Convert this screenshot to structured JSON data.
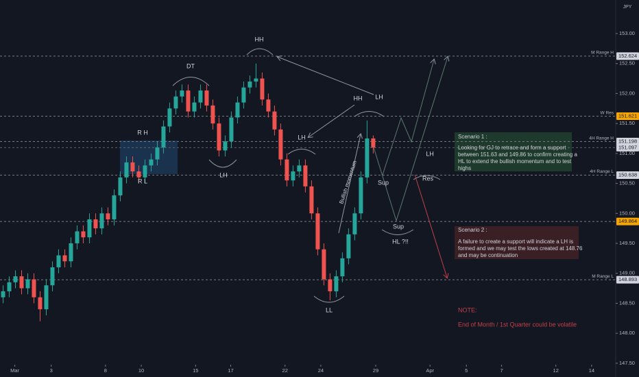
{
  "chart_data": {
    "type": "candlestick",
    "currency": "JPY",
    "open": [
      148.6,
      148.7,
      148.85,
      148.95,
      148.75,
      148.9,
      148.6,
      148.4,
      148.8,
      149.1,
      149.3,
      149.2,
      149.5,
      149.7,
      149.6,
      149.9,
      149.75,
      150.0,
      149.9,
      150.3,
      150.6,
      150.85,
      150.7,
      150.6,
      150.8,
      150.9,
      151.1,
      151.45,
      151.75,
      151.95,
      152.05,
      151.7,
      151.85,
      152.05,
      151.8,
      151.5,
      151.05,
      151.2,
      151.6,
      151.85,
      152.1,
      152.2,
      152.25,
      151.9,
      151.7,
      151.4,
      150.9,
      150.55,
      150.7,
      150.8,
      150.45,
      150.0,
      149.4,
      148.9,
      148.7,
      148.95,
      149.25,
      149.65,
      150.0,
      150.6,
      151.25
    ],
    "high": [
      148.8,
      148.95,
      149.05,
      149.05,
      149.0,
      149.0,
      148.7,
      148.9,
      149.2,
      149.4,
      149.4,
      149.6,
      149.8,
      149.8,
      150.0,
      150.0,
      150.1,
      150.1,
      150.4,
      150.7,
      150.95,
      150.95,
      150.8,
      150.9,
      151.0,
      151.2,
      151.55,
      151.85,
      152.05,
      152.15,
      152.15,
      151.95,
      152.15,
      152.15,
      151.9,
      151.6,
      151.3,
      151.7,
      151.95,
      152.2,
      152.3,
      152.5,
      152.35,
      152.0,
      151.8,
      151.5,
      151.0,
      150.8,
      150.9,
      150.9,
      150.55,
      150.1,
      149.5,
      149.0,
      149.05,
      149.35,
      149.75,
      150.1,
      150.7,
      151.55,
      151.3
    ],
    "low": [
      148.5,
      148.6,
      148.75,
      148.65,
      148.65,
      148.5,
      148.2,
      148.3,
      148.7,
      149.0,
      149.1,
      149.1,
      149.4,
      149.5,
      149.5,
      149.65,
      149.65,
      149.8,
      149.8,
      150.2,
      150.5,
      150.6,
      150.5,
      150.5,
      150.7,
      150.8,
      151.0,
      151.35,
      151.65,
      151.85,
      151.6,
      151.6,
      151.75,
      151.7,
      151.4,
      150.95,
      150.95,
      151.1,
      151.5,
      151.75,
      152.0,
      152.1,
      151.8,
      151.6,
      151.3,
      150.8,
      150.45,
      150.45,
      150.6,
      150.35,
      149.9,
      149.3,
      148.8,
      148.55,
      148.6,
      148.85,
      149.15,
      149.55,
      149.9,
      150.5,
      151.0
    ],
    "close": [
      148.7,
      148.85,
      148.95,
      148.75,
      148.9,
      148.6,
      148.4,
      148.8,
      149.1,
      149.3,
      149.2,
      149.5,
      149.7,
      149.6,
      149.9,
      149.75,
      150.0,
      149.9,
      150.3,
      150.6,
      150.85,
      150.7,
      150.6,
      150.8,
      150.9,
      151.1,
      151.45,
      151.75,
      151.95,
      152.05,
      151.7,
      151.85,
      152.05,
      151.8,
      151.5,
      151.05,
      151.2,
      151.6,
      151.85,
      152.1,
      152.2,
      152.25,
      151.9,
      151.7,
      151.4,
      150.9,
      150.55,
      150.7,
      150.8,
      150.45,
      150.0,
      149.4,
      148.9,
      148.7,
      148.95,
      149.25,
      149.65,
      150.0,
      150.6,
      151.25,
      151.1
    ],
    "up_color": "#26a69a",
    "down_color": "#ef5350",
    "xlim": [
      -0.5,
      99.3
    ],
    "xticks": [
      {
        "value": 1.9,
        "label": "Mar"
      },
      {
        "value": 7.8,
        "label": "3"
      },
      {
        "value": 16.6,
        "label": "8"
      },
      {
        "value": 22.4,
        "label": "10"
      },
      {
        "value": 31.2,
        "label": "15"
      },
      {
        "value": 36.9,
        "label": "17"
      },
      {
        "value": 45.7,
        "label": "22"
      },
      {
        "value": 51.5,
        "label": "24"
      },
      {
        "value": 60.4,
        "label": "29"
      },
      {
        "value": 69.2,
        "label": "Apr"
      },
      {
        "value": 75.1,
        "label": "5"
      },
      {
        "value": 80.8,
        "label": "7"
      },
      {
        "value": 89.6,
        "label": "12"
      },
      {
        "value": 95.4,
        "label": "14"
      }
    ],
    "ylim": [
      147.27,
      153.56
    ],
    "yticks": [
      {
        "value": 147.5,
        "label": "147.50"
      },
      {
        "value": 148,
        "label": "148.00"
      },
      {
        "value": 148.5,
        "label": "148.50"
      },
      {
        "value": 149,
        "label": "149.00"
      },
      {
        "value": 149.5,
        "label": "149.50"
      },
      {
        "value": 150,
        "label": "150.00"
      },
      {
        "value": 150.5,
        "label": "150.50"
      },
      {
        "value": 151,
        "label": "151.00"
      },
      {
        "value": 151.5,
        "label": "151.50"
      },
      {
        "value": 152,
        "label": "152.00"
      },
      {
        "value": 152.5,
        "label": "152.50"
      },
      {
        "value": 153,
        "label": "153.00"
      }
    ],
    "levels": [
      {
        "value": 152.624,
        "label": "152.624",
        "name": "M Range H",
        "color": "#d1d4dc"
      },
      {
        "value": 151.621,
        "label": "151.621",
        "name": "W Res",
        "color": "#f7a600"
      },
      {
        "value": 151.198,
        "label": "151.198",
        "name": "4H Range H",
        "color": "#d1d4dc"
      },
      {
        "value": 151.097,
        "label": "151.097",
        "color": "#d1d4dc"
      },
      {
        "value": 150.638,
        "label": "150.638",
        "name": "4H Range L",
        "color": "#d1d4dc"
      },
      {
        "value": 149.864,
        "label": "149.864",
        "color": "#f7a600"
      },
      {
        "value": 148.893,
        "label": "148.893",
        "name": "M Range L",
        "color": "#d1d4dc"
      }
    ],
    "annotations": [
      "HH",
      "DT",
      "R H",
      "R L",
      "LH",
      "HH",
      "LH",
      "LH",
      "Bullish momentum",
      "Sup",
      "Sup",
      "HL ?!!",
      "Res",
      "LH",
      "LL"
    ],
    "scenario_1": {
      "title": "Scenario 1 :",
      "lines": [
        "Looking for GJ to retrace and form a support",
        "between 151.63 and 149.86 to confirm creating a",
        "HL to extend the bullish momentum and to test",
        "highs"
      ]
    },
    "scenario_2": {
      "title": "Scenario 2 :",
      "lines": [
        "A failure to create a support will indicate a LH is",
        "formed and we may test the lows created at 148.76",
        "and may be continuation"
      ]
    },
    "note": {
      "title": "NOTE:",
      "text": "End of Month / 1st Quarter could be volatile"
    }
  }
}
